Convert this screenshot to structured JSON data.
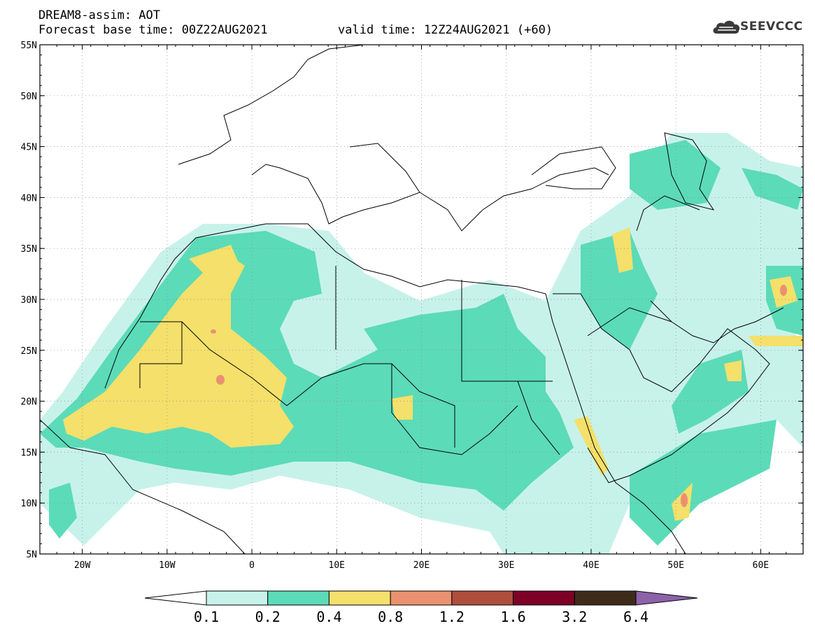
{
  "header": {
    "title": "DREAM8-assim: AOT",
    "base_time": "Forecast base time: 00Z22AUG2021",
    "valid_time": "valid time: 12Z24AUG2021 (+60)",
    "logo_text": "SEEVCCC"
  },
  "map": {
    "lon_range": [
      -25,
      65
    ],
    "lat_range": [
      5,
      55
    ],
    "lat_labels": [
      "55N",
      "50N",
      "45N",
      "40N",
      "35N",
      "30N",
      "25N",
      "20N",
      "15N",
      "10N",
      "5N"
    ],
    "lon_labels": [
      "20W",
      "10W",
      "0",
      "10E",
      "20E",
      "30E",
      "40E",
      "50E",
      "60E"
    ],
    "ocean_color": "#ffffff",
    "coastline_color": "#000000",
    "gridline_style": "dotted gray"
  },
  "colorbar": {
    "labels": [
      "0.1",
      "0.2",
      "0.4",
      "0.8",
      "1.2",
      "1.6",
      "3.2",
      "6.4"
    ],
    "colors": [
      "#ffffff",
      "#c7f2ea",
      "#5cdbb8",
      "#f4e06b",
      "#ea9170",
      "#ad4f3b",
      "#7e0227",
      "#3e2c1a",
      "#8d62a9"
    ]
  }
}
